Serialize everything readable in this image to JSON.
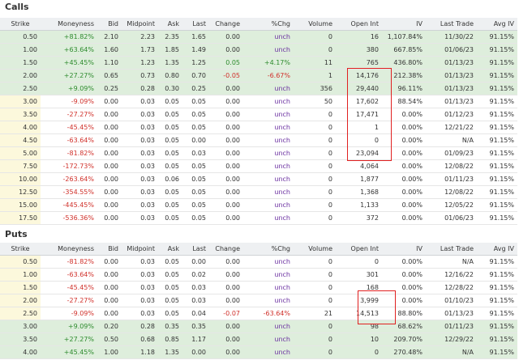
{
  "calls": {
    "title": "Calls",
    "columns": [
      "Strike",
      "Moneyness",
      "Bid",
      "Midpoint",
      "Ask",
      "Last",
      "Change",
      "%Chg",
      "Volume",
      "Open Int",
      "IV",
      "Last Trade",
      "Avg IV"
    ],
    "rows": [
      [
        "0.50",
        "+81.82%",
        "2.10",
        "2.23",
        "2.35",
        "1.65",
        "0.00",
        "unch",
        "0",
        "16",
        "1,107.84%",
        "11/30/22",
        "91.15%"
      ],
      [
        "1.00",
        "+63.64%",
        "1.60",
        "1.73",
        "1.85",
        "1.49",
        "0.00",
        "unch",
        "0",
        "380",
        "667.85%",
        "01/06/23",
        "91.15%"
      ],
      [
        "1.50",
        "+45.45%",
        "1.10",
        "1.23",
        "1.35",
        "1.25",
        "0.05",
        "+4.17%",
        "11",
        "765",
        "436.80%",
        "01/13/23",
        "91.15%"
      ],
      [
        "2.00",
        "+27.27%",
        "0.65",
        "0.73",
        "0.80",
        "0.70",
        "-0.05",
        "-6.67%",
        "1",
        "14,176",
        "212.38%",
        "01/13/23",
        "91.15%"
      ],
      [
        "2.50",
        "+9.09%",
        "0.25",
        "0.28",
        "0.30",
        "0.25",
        "0.00",
        "unch",
        "356",
        "29,440",
        "96.11%",
        "01/13/23",
        "91.15%"
      ],
      [
        "3.00",
        "-9.09%",
        "0.00",
        "0.03",
        "0.05",
        "0.05",
        "0.00",
        "unch",
        "50",
        "17,602",
        "88.54%",
        "01/13/23",
        "91.15%"
      ],
      [
        "3.50",
        "-27.27%",
        "0.00",
        "0.03",
        "0.05",
        "0.05",
        "0.00",
        "unch",
        "0",
        "17,471",
        "0.00%",
        "01/12/23",
        "91.15%"
      ],
      [
        "4.00",
        "-45.45%",
        "0.00",
        "0.03",
        "0.05",
        "0.05",
        "0.00",
        "unch",
        "0",
        "1",
        "0.00%",
        "12/21/22",
        "91.15%"
      ],
      [
        "4.50",
        "-63.64%",
        "0.00",
        "0.03",
        "0.05",
        "0.00",
        "0.00",
        "unch",
        "0",
        "0",
        "0.00%",
        "N/A",
        "91.15%"
      ],
      [
        "5.00",
        "-81.82%",
        "0.00",
        "0.03",
        "0.05",
        "0.03",
        "0.00",
        "unch",
        "0",
        "23,094",
        "0.00%",
        "01/09/23",
        "91.15%"
      ],
      [
        "7.50",
        "-172.73%",
        "0.00",
        "0.03",
        "0.05",
        "0.05",
        "0.00",
        "unch",
        "0",
        "4,064",
        "0.00%",
        "12/08/22",
        "91.15%"
      ],
      [
        "10.00",
        "-263.64%",
        "0.00",
        "0.03",
        "0.06",
        "0.05",
        "0.00",
        "unch",
        "0",
        "1,877",
        "0.00%",
        "01/11/23",
        "91.15%"
      ],
      [
        "12.50",
        "-354.55%",
        "0.00",
        "0.03",
        "0.05",
        "0.05",
        "0.00",
        "unch",
        "0",
        "1,368",
        "0.00%",
        "12/08/22",
        "91.15%"
      ],
      [
        "15.00",
        "-445.45%",
        "0.00",
        "0.03",
        "0.05",
        "0.05",
        "0.00",
        "unch",
        "0",
        "1,133",
        "0.00%",
        "12/05/22",
        "91.15%"
      ],
      [
        "17.50",
        "-536.36%",
        "0.00",
        "0.03",
        "0.05",
        "0.05",
        "0.00",
        "unch",
        "0",
        "372",
        "0.00%",
        "01/06/23",
        "91.15%"
      ]
    ]
  },
  "puts": {
    "title": "Puts",
    "columns": [
      "Strike",
      "Moneyness",
      "Bid",
      "Midpoint",
      "Ask",
      "Last",
      "Change",
      "%Chg",
      "Volume",
      "Open Int",
      "IV",
      "Last Trade",
      "Avg IV"
    ],
    "rows": [
      [
        "0.50",
        "-81.82%",
        "0.00",
        "0.03",
        "0.05",
        "0.00",
        "0.00",
        "unch",
        "0",
        "0",
        "0.00%",
        "N/A",
        "91.15%"
      ],
      [
        "1.00",
        "-63.64%",
        "0.00",
        "0.03",
        "0.05",
        "0.02",
        "0.00",
        "unch",
        "0",
        "301",
        "0.00%",
        "12/16/22",
        "91.15%"
      ],
      [
        "1.50",
        "-45.45%",
        "0.00",
        "0.03",
        "0.05",
        "0.03",
        "0.00",
        "unch",
        "0",
        "168",
        "0.00%",
        "12/28/22",
        "91.15%"
      ],
      [
        "2.00",
        "-27.27%",
        "0.00",
        "0.03",
        "0.05",
        "0.03",
        "0.00",
        "unch",
        "0",
        "3,999",
        "0.00%",
        "01/10/23",
        "91.15%"
      ],
      [
        "2.50",
        "-9.09%",
        "0.00",
        "0.03",
        "0.05",
        "0.04",
        "-0.07",
        "-63.64%",
        "21",
        "14,513",
        "88.80%",
        "01/13/23",
        "91.15%"
      ],
      [
        "3.00",
        "+9.09%",
        "0.20",
        "0.28",
        "0.35",
        "0.35",
        "0.00",
        "unch",
        "0",
        "98",
        "68.62%",
        "01/11/23",
        "91.15%"
      ],
      [
        "3.50",
        "+27.27%",
        "0.50",
        "0.68",
        "0.85",
        "1.17",
        "0.00",
        "unch",
        "0",
        "10",
        "209.70%",
        "12/29/22",
        "91.15%"
      ],
      [
        "4.00",
        "+45.45%",
        "1.00",
        "1.18",
        "1.35",
        "0.00",
        "0.00",
        "unch",
        "0",
        "0",
        "270.48%",
        "N/A",
        "91.15%"
      ]
    ]
  }
}
